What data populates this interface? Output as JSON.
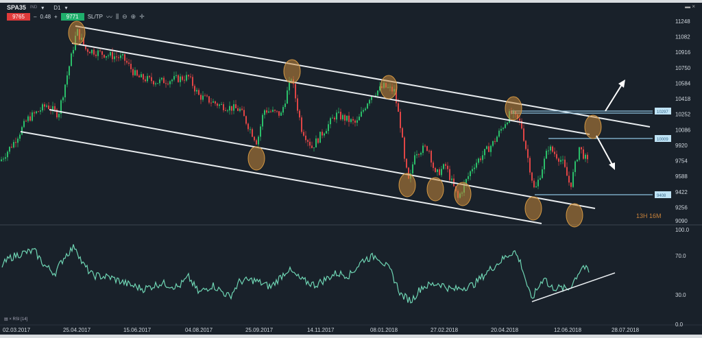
{
  "header": {
    "symbol": "SPA35",
    "market": "IND",
    "timeframe": "D1",
    "sell_price": "9765",
    "spread": "0.48",
    "buy_price": "9771",
    "sltp_label": "SL/TP",
    "window_controls": "▬ ×"
  },
  "timer": "13H 16M",
  "rsi_label": "RSI [14]",
  "chart_data": [
    {
      "type": "candlestick",
      "instrument": "SPA35",
      "y_ticks": [
        11248,
        11082,
        10916,
        10750,
        10584,
        10418,
        10252,
        10086,
        9920,
        9754,
        9588,
        9422,
        9256,
        9090
      ],
      "ylim": [
        9090,
        11248
      ],
      "x_ticks": [
        "02.03.2017",
        "25.04.2017",
        "15.06.2017",
        "04.08.2017",
        "25.09.2017",
        "14.11.2017",
        "08.01.2018",
        "27.02.2018",
        "20.04.2018",
        "12.06.2018",
        "28.07.2018"
      ],
      "approx_close_path": [
        [
          "02.03.2017",
          9750
        ],
        [
          "15.03.2017",
          10100
        ],
        [
          "05.04.2017",
          10350
        ],
        [
          "25.04.2017",
          10900
        ],
        [
          "28.04.2017",
          11150
        ],
        [
          "15.06.2017",
          10650
        ],
        [
          "04.08.2017",
          10450
        ],
        [
          "20.09.2017",
          9950
        ],
        [
          "05.10.2017",
          10650
        ],
        [
          "14.11.2017",
          10100
        ],
        [
          "08.01.2018",
          10550
        ],
        [
          "20.01.2018",
          9500
        ],
        [
          "27.02.2018",
          9600
        ],
        [
          "09.03.2018",
          9350
        ],
        [
          "20.04.2018",
          10150
        ],
        [
          "02.05.2018",
          10270
        ],
        [
          "25.05.2018",
          9420
        ],
        [
          "12.06.2018",
          9750
        ],
        [
          "18.06.2018",
          9480
        ],
        [
          "25.06.2018",
          9900
        ],
        [
          "02.07.2018",
          9720
        ]
      ],
      "price_labels": [
        "10297",
        "10009",
        "9408"
      ],
      "colors": {
        "up": "#2bbf6a",
        "down": "#e04545",
        "channel": "#e8ecef",
        "marker": "#c88a3a"
      }
    },
    {
      "type": "line",
      "name": "RSI [14]",
      "y_ticks": [
        "100.0",
        "70.0",
        "30.0",
        "0.0"
      ],
      "ylim": [
        0,
        100
      ],
      "approx_values": [
        60,
        68,
        72,
        75,
        60,
        52,
        70,
        80,
        62,
        50,
        48,
        40,
        36,
        42,
        38,
        48,
        32,
        40,
        28,
        44,
        45,
        38,
        56,
        45,
        40,
        52,
        50,
        66,
        70,
        54,
        30,
        24,
        38,
        42,
        35,
        40,
        56,
        70,
        75,
        62,
        25,
        50,
        38,
        36,
        60,
        52
      ],
      "color": "#6fd6b4"
    }
  ]
}
